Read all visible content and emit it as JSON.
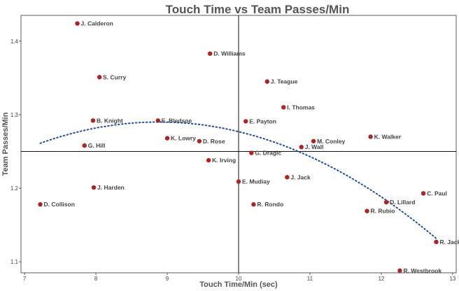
{
  "chart_data": {
    "type": "scatter",
    "title": "Touch Time vs Team Passes/Min",
    "xlabel": "Touch Time/Min (sec)",
    "ylabel": "Team Passes/Min",
    "xlim": [
      6.95,
      13.05
    ],
    "ylim": [
      1.085,
      1.435
    ],
    "xticks": [
      "7",
      "8",
      "9",
      "10",
      "11",
      "12",
      "13"
    ],
    "yticks": [
      "1.1",
      "1.2",
      "1.3",
      "1.4"
    ],
    "reference_lines": {
      "x": 10.0,
      "y": 1.25
    },
    "grid": false,
    "trend_line": {
      "style": "dotted",
      "color": "#1f4e9c",
      "kind": "polynomial"
    },
    "point_color": "#b22222",
    "points": [
      {
        "label": "J. Calderon",
        "x": 7.74,
        "y": 1.424
      },
      {
        "label": "D. Williams",
        "x": 9.6,
        "y": 1.383
      },
      {
        "label": "S. Curry",
        "x": 8.05,
        "y": 1.351
      },
      {
        "label": "J. Teague",
        "x": 10.4,
        "y": 1.345
      },
      {
        "label": "I. Thomas",
        "x": 10.63,
        "y": 1.31
      },
      {
        "label": "B. Knight",
        "x": 7.96,
        "y": 1.292
      },
      {
        "label": "E. Bledsoe",
        "x": 8.87,
        "y": 1.292
      },
      {
        "label": "E. Payton",
        "x": 10.1,
        "y": 1.291
      },
      {
        "label": "K. Walker",
        "x": 11.85,
        "y": 1.27
      },
      {
        "label": "K. Lowry",
        "x": 9.0,
        "y": 1.268
      },
      {
        "label": "D. Rose",
        "x": 9.45,
        "y": 1.264
      },
      {
        "label": "M. Conley",
        "x": 11.05,
        "y": 1.264
      },
      {
        "label": "G. Hill",
        "x": 7.84,
        "y": 1.258
      },
      {
        "label": "J. Wall",
        "x": 10.88,
        "y": 1.256
      },
      {
        "label": "G. Dragic",
        "x": 10.18,
        "y": 1.248
      },
      {
        "label": "K. Irving",
        "x": 9.58,
        "y": 1.238
      },
      {
        "label": "J. Jack",
        "x": 10.68,
        "y": 1.215
      },
      {
        "label": "E. Mudiay",
        "x": 10.0,
        "y": 1.209
      },
      {
        "label": "J. Harden",
        "x": 7.97,
        "y": 1.201
      },
      {
        "label": "C. Paul",
        "x": 12.59,
        "y": 1.193
      },
      {
        "label": "D. Lillard",
        "x": 12.07,
        "y": 1.181
      },
      {
        "label": "D. Collison",
        "x": 7.22,
        "y": 1.178
      },
      {
        "label": "R. Rondo",
        "x": 10.21,
        "y": 1.178
      },
      {
        "label": "R. Rubio",
        "x": 11.8,
        "y": 1.169
      },
      {
        "label": "R. Jack",
        "x": 12.77,
        "y": 1.127
      },
      {
        "label": "R. Westbrook",
        "x": 12.26,
        "y": 1.088
      }
    ]
  }
}
